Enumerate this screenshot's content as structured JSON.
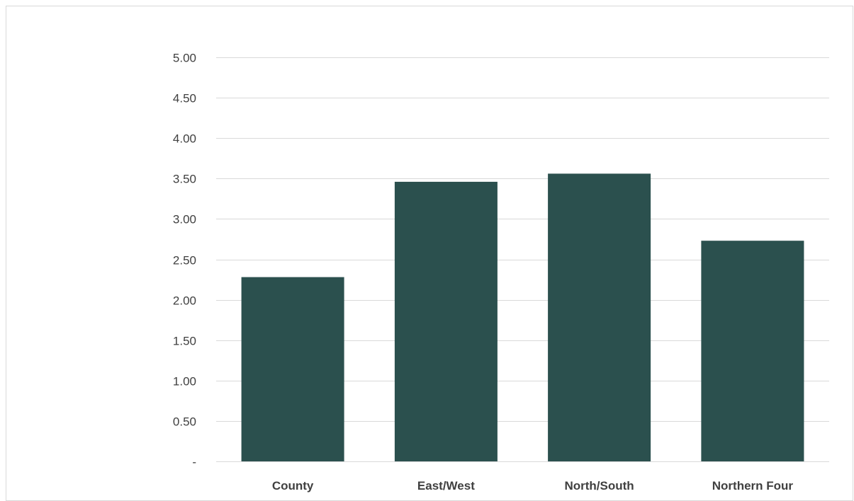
{
  "chart_data": {
    "type": "bar",
    "categories": [
      "County",
      "East/West",
      "North/South",
      "Northern Four"
    ],
    "values": [
      2.28,
      3.46,
      3.56,
      2.73
    ],
    "title": "",
    "xlabel": "",
    "ylabel": "",
    "ylim": [
      0,
      5
    ],
    "y_ticks": [
      0,
      0.5,
      1,
      1.5,
      2,
      2.5,
      3,
      3.5,
      4,
      4.5,
      5
    ],
    "y_tick_labels": [
      "-",
      "0.50",
      "1.00",
      "1.50",
      "2.00",
      "2.50",
      "3.00",
      "3.50",
      "4.00",
      "4.50",
      "5.00"
    ],
    "grid": true,
    "legend": "none",
    "bar_color": "#2b504e",
    "gridline_color": "#d9d9d9",
    "text_color": "#404040"
  }
}
